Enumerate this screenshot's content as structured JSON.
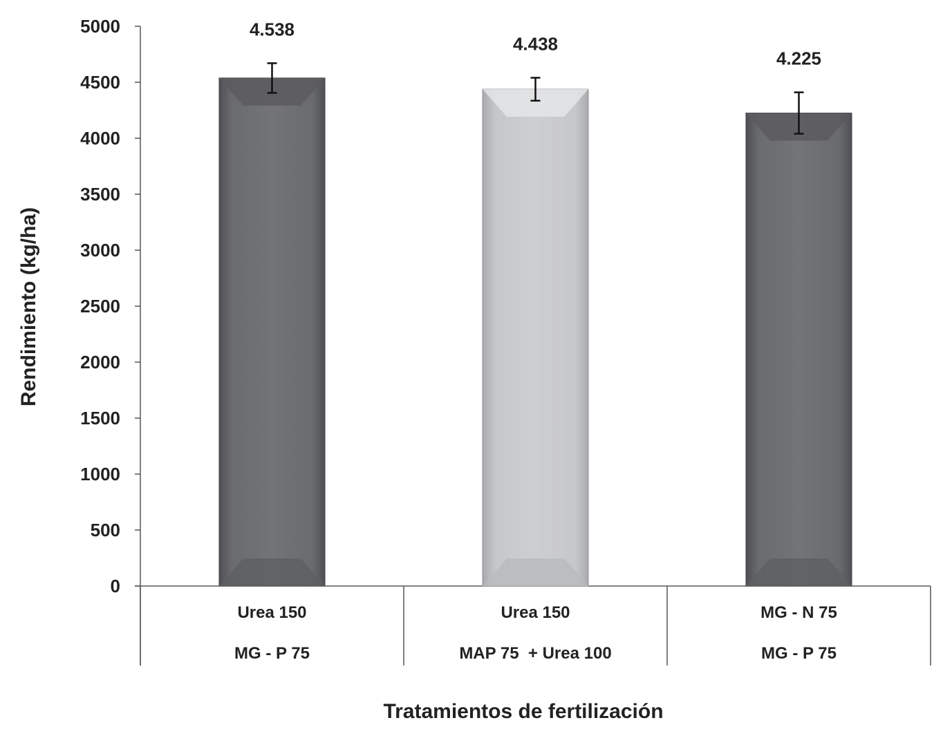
{
  "chart_data": {
    "type": "bar",
    "xlabel": "Tratamientos de fertilización",
    "ylabel": "Rendimiento (kg/ha)",
    "ylim": [
      0,
      5000
    ],
    "yticks": [
      "0",
      "500",
      "1000",
      "1500",
      "2000",
      "2500",
      "3000",
      "3500",
      "4000",
      "4500",
      "5000"
    ],
    "grid": false,
    "categories": [
      {
        "line1": "Urea 150",
        "line2": "MG - P 75"
      },
      {
        "line1": "Urea 150",
        "line2": "MAP 75  + Urea 100"
      },
      {
        "line1": "MG - N 75",
        "line2": "MG - P 75"
      }
    ],
    "values": [
      4538,
      4438,
      4225
    ],
    "value_labels": [
      "4.538",
      "4.438",
      "4.225"
    ],
    "error_high": [
      4670,
      4540,
      4410
    ],
    "error_low": [
      4405,
      4335,
      4040
    ],
    "bar_colors": [
      "#6e6f73",
      "#c9cacc",
      "#6e6f73"
    ]
  }
}
